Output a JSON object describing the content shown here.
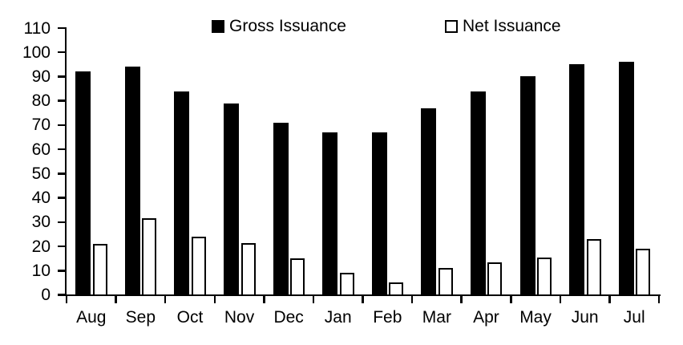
{
  "chart_data": {
    "type": "bar",
    "title": "",
    "xlabel": "",
    "ylabel": "",
    "categories": [
      "Aug",
      "Sep",
      "Oct",
      "Nov",
      "Dec",
      "Jan",
      "Feb",
      "Mar",
      "Apr",
      "May",
      "Jun",
      "Jul"
    ],
    "series": [
      {
        "name": "Gross Issuance",
        "style": "filled",
        "fill": "#000000",
        "values": [
          92,
          94,
          84,
          79,
          71,
          67,
          67,
          77,
          84,
          90,
          95,
          96
        ]
      },
      {
        "name": "Net Issuance",
        "style": "hollow",
        "fill": "#ffffff",
        "outline": "#000000",
        "values": [
          21,
          31.5,
          24,
          21.5,
          15,
          9,
          5,
          11,
          13.5,
          15.5,
          23,
          19
        ]
      }
    ],
    "ylim": [
      0,
      110
    ],
    "yticks": [
      0,
      10,
      20,
      30,
      40,
      50,
      60,
      70,
      80,
      90,
      100,
      110
    ],
    "grid": false,
    "legend_position": "top"
  },
  "colors": {
    "background": "#ffffff",
    "axis": "#000000",
    "text": "#000000",
    "gross_bar": "#000000",
    "net_bar_fill": "#ffffff",
    "net_bar_outline": "#000000"
  }
}
